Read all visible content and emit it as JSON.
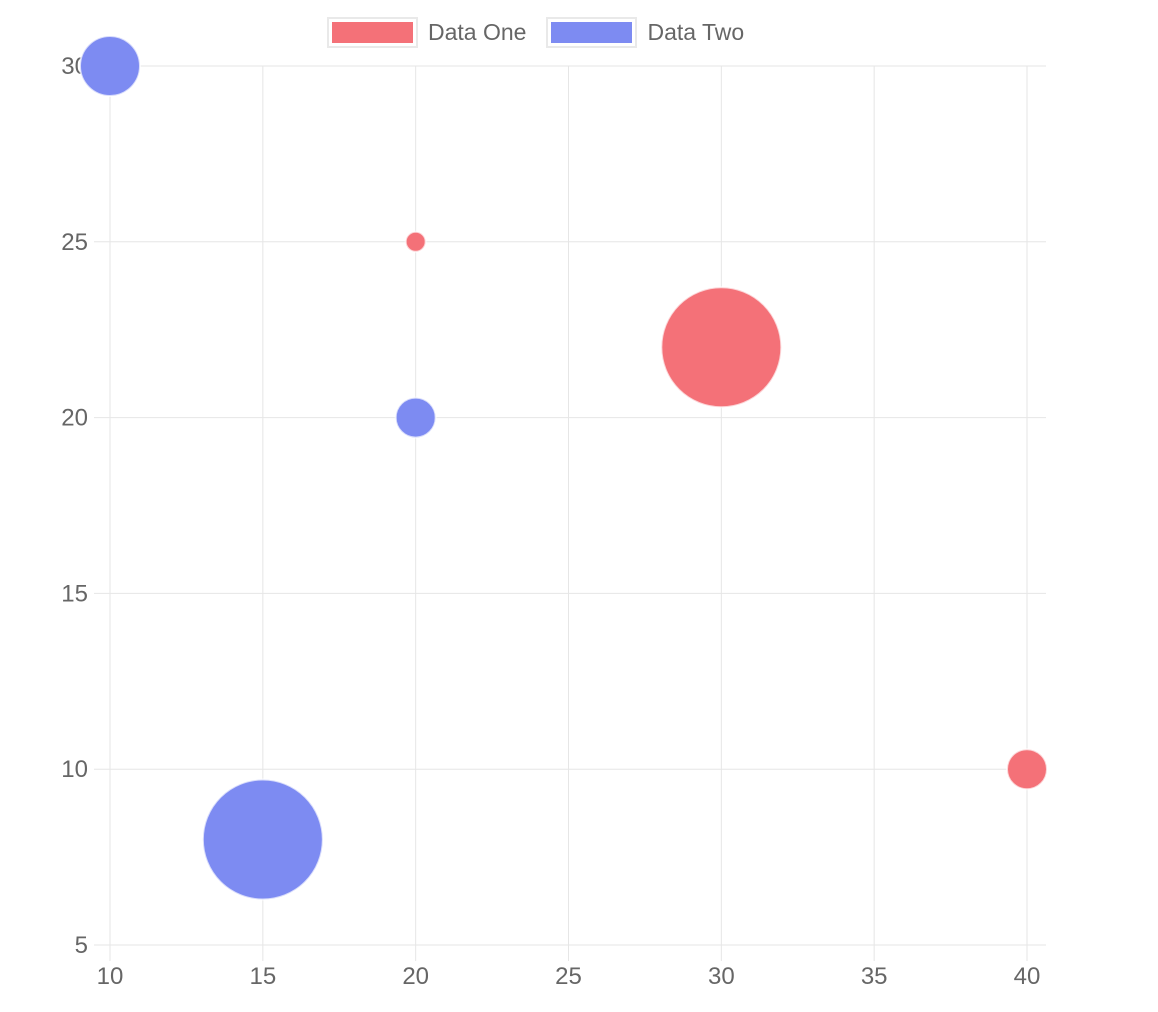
{
  "background": "#ffffff",
  "chart_data": {
    "type": "bubble",
    "title": "",
    "xlabel": "",
    "ylabel": "",
    "grid": true,
    "legend_position": "top",
    "x_ticks": [
      10,
      15,
      20,
      25,
      30,
      35,
      40
    ],
    "y_ticks": [
      5,
      10,
      15,
      20,
      25,
      30
    ],
    "xlim": [
      10,
      40.6
    ],
    "ylim": [
      5,
      30
    ],
    "series": [
      {
        "name": "Data One",
        "color": "#f47178",
        "points": [
          {
            "x": 20,
            "y": 25,
            "r": 10
          },
          {
            "x": 30,
            "y": 22,
            "r": 60
          },
          {
            "x": 40,
            "y": 10,
            "r": 20
          }
        ]
      },
      {
        "name": "Data Two",
        "color": "#7d8bf2",
        "points": [
          {
            "x": 10,
            "y": 30,
            "r": 30
          },
          {
            "x": 20,
            "y": 20,
            "r": 20
          },
          {
            "x": 15,
            "y": 8,
            "r": 60
          }
        ]
      }
    ]
  },
  "legend": {
    "items": [
      {
        "label": "Data One",
        "color": "#f47178"
      },
      {
        "label": "Data Two",
        "color": "#7d8bf2"
      }
    ]
  },
  "style": {
    "gridline_color": "#e6e6e6",
    "tick_label_color": "#666666",
    "bubble_stroke": "rgba(255,255,255,0.7)",
    "legend_box_border": "#e9e9e9"
  }
}
